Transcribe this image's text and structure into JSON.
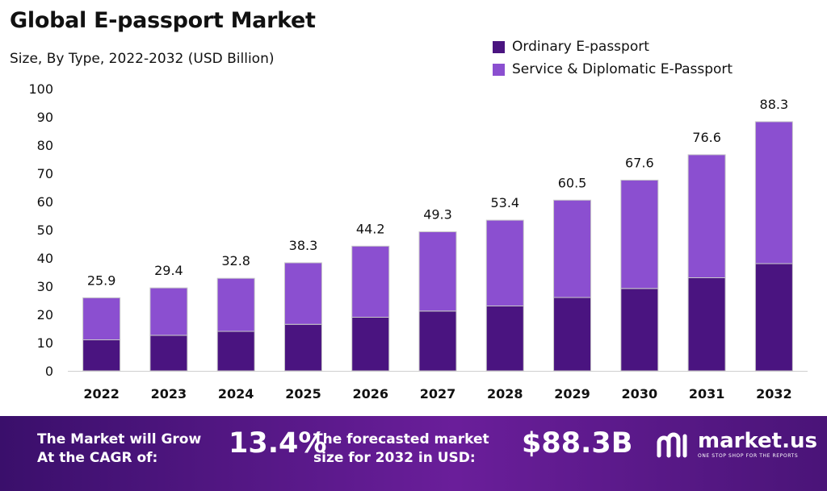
{
  "header": {
    "title": "Global E-passport Market",
    "subtitle": "Size, By Type, 2022-2032 (USD Billion)"
  },
  "legend": [
    {
      "label": "Ordinary E-passport",
      "color": "#4a1480"
    },
    {
      "label": "Service & Diplomatic E-Passport",
      "color": "#8b4fd0"
    }
  ],
  "chart_data": {
    "type": "bar",
    "stacked": true,
    "categories": [
      "2022",
      "2023",
      "2024",
      "2025",
      "2026",
      "2027",
      "2028",
      "2029",
      "2030",
      "2031",
      "2032"
    ],
    "series": [
      {
        "name": "Ordinary E-passport",
        "color": "#4a1480",
        "values": [
          11.0,
          12.6,
          14.0,
          16.5,
          19.0,
          21.2,
          23.0,
          26.0,
          29.2,
          33.0,
          38.0
        ]
      },
      {
        "name": "Service & Diplomatic E-Passport",
        "color": "#8b4fd0",
        "values": [
          14.9,
          16.8,
          18.8,
          21.8,
          25.2,
          28.1,
          30.4,
          34.5,
          38.4,
          43.6,
          50.3
        ]
      }
    ],
    "totals": [
      25.9,
      29.4,
      32.8,
      38.3,
      44.2,
      49.3,
      53.4,
      60.5,
      67.6,
      76.6,
      88.3
    ],
    "total_labels": [
      "25.9",
      "29.4",
      "32.8",
      "38.3",
      "44.2",
      "49.3",
      "53.4",
      "60.5",
      "67.6",
      "76.6",
      "88.3"
    ],
    "yticks": [
      "0",
      "10",
      "20",
      "30",
      "40",
      "50",
      "60",
      "70",
      "80",
      "90",
      "100"
    ],
    "ylim": [
      0,
      100
    ],
    "grid": false,
    "legend_position": "top-right"
  },
  "banner": {
    "grow_line1": "The Market will Grow",
    "grow_line2": "At the CAGR of:",
    "cagr": "13.4%",
    "forecast_line1": "The forecasted market",
    "forecast_line2": "size for 2032 in USD:",
    "amount": "$88.3B",
    "brand": "market.us",
    "tagline": "ONE STOP SHOP FOR THE REPORTS"
  }
}
